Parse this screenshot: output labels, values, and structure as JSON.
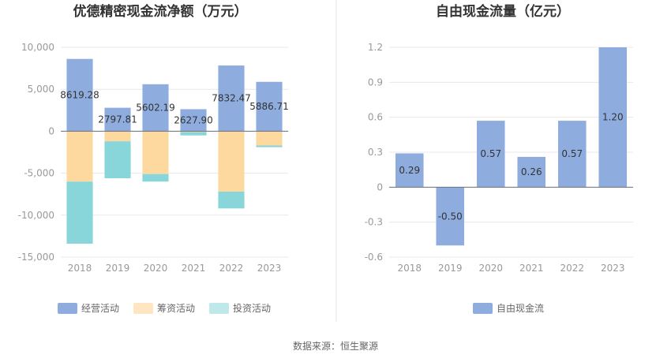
{
  "source": "数据来源：恒生聚源",
  "chart_data": [
    {
      "type": "bar",
      "stacked": true,
      "title": "优德精密现金流净额（万元）",
      "categories": [
        "2018",
        "2019",
        "2020",
        "2021",
        "2022",
        "2023"
      ],
      "ylim": [
        -15000,
        10000
      ],
      "yticks": [
        10000,
        5000,
        0,
        -5000,
        -10000,
        -15000
      ],
      "ytick_labels": [
        "10,000",
        "5,000",
        "0",
        "-5,000",
        "-10,000",
        "-15,000"
      ],
      "grid": true,
      "legend_position": "bottom",
      "series": [
        {
          "name": "经营活动",
          "color": "#8eadde",
          "values": [
            8619.28,
            2797.81,
            5602.19,
            2627.9,
            7832.47,
            5886.71
          ],
          "labels": [
            "8619.28",
            "2797.81",
            "5602.19",
            "2627.90",
            "7832.47",
            "5886.71"
          ]
        },
        {
          "name": "筹资活动",
          "color": "#fdd9a0",
          "values": [
            -6000,
            -1200,
            -5100,
            -100,
            -7200,
            -1700
          ],
          "labels": []
        },
        {
          "name": "投资活动",
          "color": "#88d6da",
          "values": [
            -7400,
            -4400,
            -900,
            -400,
            -2000,
            -200
          ],
          "labels": []
        }
      ]
    },
    {
      "type": "bar",
      "title": "自由现金流量（亿元）",
      "categories": [
        "2018",
        "2019",
        "2020",
        "2021",
        "2022",
        "2023"
      ],
      "ylim": [
        -0.6,
        1.2
      ],
      "yticks": [
        1.2,
        0.9,
        0.6,
        0.3,
        0,
        -0.3,
        -0.6
      ],
      "ytick_labels": [
        "1.2",
        "0.9",
        "0.6",
        "0.3",
        "0",
        "-0.3",
        "-0.6"
      ],
      "grid": true,
      "legend_position": "bottom",
      "series": [
        {
          "name": "自由现金流",
          "color": "#8eadde",
          "values": [
            0.29,
            -0.5,
            0.57,
            0.26,
            0.57,
            1.2
          ],
          "labels": [
            "0.29",
            "-0.50",
            "0.57",
            "0.26",
            "0.57",
            "1.20"
          ]
        }
      ]
    }
  ]
}
